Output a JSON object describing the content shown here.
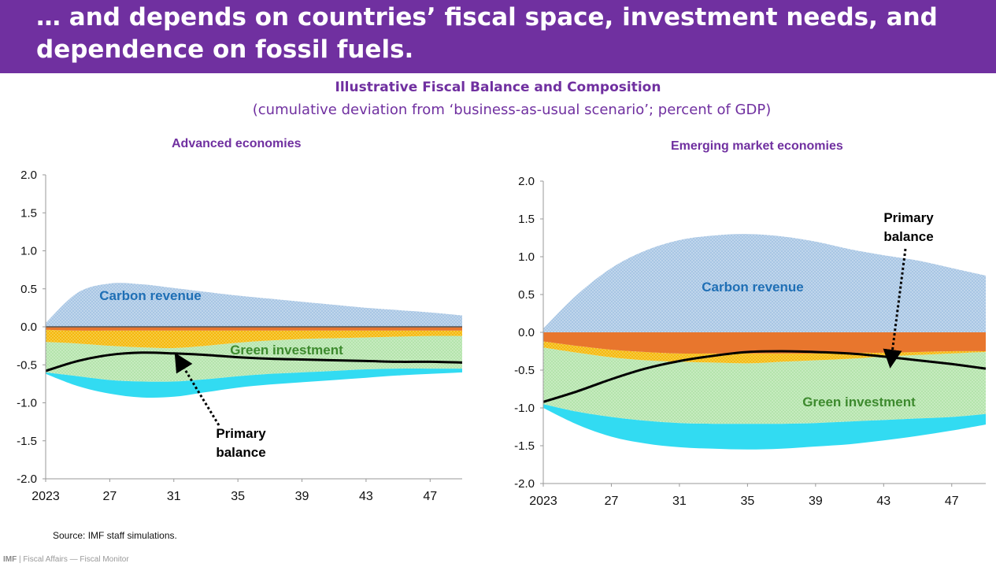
{
  "slide": {
    "title": "… and depends on countries’ fiscal space, investment needs, and dependence on fossil fuels.",
    "figure_title": "Illustrative Fiscal Balance and Composition",
    "figure_subtitle": "(cumulative deviation from ‘business-as-usual scenario’; percent of GDP)",
    "source": "Source: IMF staff simulations.",
    "footer_org": "IMF",
    "footer_text": "| Fiscal Affairs — Fiscal Monitor"
  },
  "colors": {
    "banner": "#7030a0",
    "title_purple": "#7030a0",
    "carbon_revenue": "#9dbfe0",
    "dark_orange": "#e8762d",
    "yellow_orange": "#f5b90f",
    "green_investment": "#b8e6b0",
    "cyan": "#32dbf2",
    "primary_balance": "#000000"
  },
  "chart_data": [
    {
      "type": "area",
      "title": "Advanced economies",
      "x": [
        2023,
        2025,
        2027,
        2029,
        2031,
        2033,
        2035,
        2037,
        2039,
        2041,
        2043,
        2045,
        2047,
        2049
      ],
      "x_tick_labels": [
        "2023",
        "27",
        "31",
        "35",
        "39",
        "43",
        "47"
      ],
      "ylim": [
        -2.0,
        2.0
      ],
      "y_ticks": [
        "2.0",
        "1.5",
        "1.0",
        "0.5",
        "0.0",
        "-0.5",
        "-1.0",
        "-1.5",
        "-2.0"
      ],
      "series": [
        {
          "name": "Carbon revenue",
          "values": [
            0.05,
            0.45,
            0.57,
            0.56,
            0.51,
            0.46,
            0.41,
            0.37,
            0.33,
            0.29,
            0.25,
            0.22,
            0.19,
            0.15
          ]
        },
        {
          "values": [
            -0.04,
            -0.05,
            -0.05,
            -0.05,
            -0.05,
            -0.05,
            -0.05,
            -0.05,
            -0.05,
            -0.05,
            -0.05,
            -0.05,
            -0.05,
            -0.05
          ]
        },
        {
          "values": [
            -0.2,
            -0.22,
            -0.25,
            -0.27,
            -0.28,
            -0.25,
            -0.21,
            -0.18,
            -0.16,
            -0.15,
            -0.14,
            -0.13,
            -0.12,
            -0.12
          ]
        },
        {
          "name": "Green investment",
          "values": [
            -0.6,
            -0.65,
            -0.7,
            -0.72,
            -0.72,
            -0.69,
            -0.65,
            -0.62,
            -0.6,
            -0.58,
            -0.56,
            -0.55,
            -0.55,
            -0.55
          ]
        },
        {
          "values": [
            -0.62,
            -0.78,
            -0.88,
            -0.93,
            -0.92,
            -0.86,
            -0.8,
            -0.76,
            -0.73,
            -0.7,
            -0.67,
            -0.64,
            -0.62,
            -0.6
          ]
        },
        {
          "name": "Primary balance",
          "values": [
            -0.58,
            -0.45,
            -0.37,
            -0.34,
            -0.35,
            -0.37,
            -0.4,
            -0.42,
            -0.43,
            -0.44,
            -0.45,
            -0.46,
            -0.46,
            -0.47
          ]
        }
      ],
      "annotations": [
        {
          "text": "Carbon revenue"
        },
        {
          "text": "Green investment"
        },
        {
          "text": "Primary",
          "text2": "balance"
        }
      ]
    },
    {
      "type": "area",
      "title": "Emerging market economies",
      "x": [
        2023,
        2025,
        2027,
        2029,
        2031,
        2033,
        2035,
        2037,
        2039,
        2041,
        2043,
        2045,
        2047,
        2049
      ],
      "x_tick_labels": [
        "2023",
        "27",
        "31",
        "35",
        "39",
        "43",
        "47"
      ],
      "ylim": [
        -2.0,
        2.0
      ],
      "y_ticks": [
        "2.0",
        "1.5",
        "1.0",
        "0.5",
        "0.0",
        "-0.5",
        "-1.0",
        "-1.5",
        "-2.0"
      ],
      "series": [
        {
          "name": "Carbon revenue",
          "values": [
            0.05,
            0.5,
            0.85,
            1.08,
            1.22,
            1.28,
            1.3,
            1.27,
            1.2,
            1.1,
            1.02,
            0.95,
            0.85,
            0.75
          ]
        },
        {
          "values": [
            -0.12,
            -0.18,
            -0.23,
            -0.26,
            -0.28,
            -0.28,
            -0.28,
            -0.28,
            -0.28,
            -0.27,
            -0.27,
            -0.26,
            -0.25,
            -0.25
          ]
        },
        {
          "values": [
            -0.2,
            -0.27,
            -0.33,
            -0.37,
            -0.39,
            -0.4,
            -0.41,
            -0.39,
            -0.37,
            -0.35,
            -0.32,
            -0.3,
            -0.28,
            -0.26
          ]
        },
        {
          "name": "Green investment",
          "values": [
            -0.95,
            -1.05,
            -1.12,
            -1.17,
            -1.2,
            -1.21,
            -1.21,
            -1.21,
            -1.2,
            -1.18,
            -1.16,
            -1.14,
            -1.12,
            -1.08
          ]
        },
        {
          "values": [
            -1.0,
            -1.22,
            -1.38,
            -1.47,
            -1.52,
            -1.54,
            -1.55,
            -1.54,
            -1.51,
            -1.48,
            -1.43,
            -1.37,
            -1.3,
            -1.22
          ]
        },
        {
          "name": "Primary balance",
          "values": [
            -0.92,
            -0.78,
            -0.62,
            -0.48,
            -0.38,
            -0.31,
            -0.26,
            -0.25,
            -0.26,
            -0.28,
            -0.32,
            -0.37,
            -0.42,
            -0.48
          ]
        }
      ],
      "annotations": [
        {
          "text": "Carbon revenue"
        },
        {
          "text": "Green investment"
        },
        {
          "text": "Primary",
          "text2": "balance"
        }
      ]
    }
  ]
}
